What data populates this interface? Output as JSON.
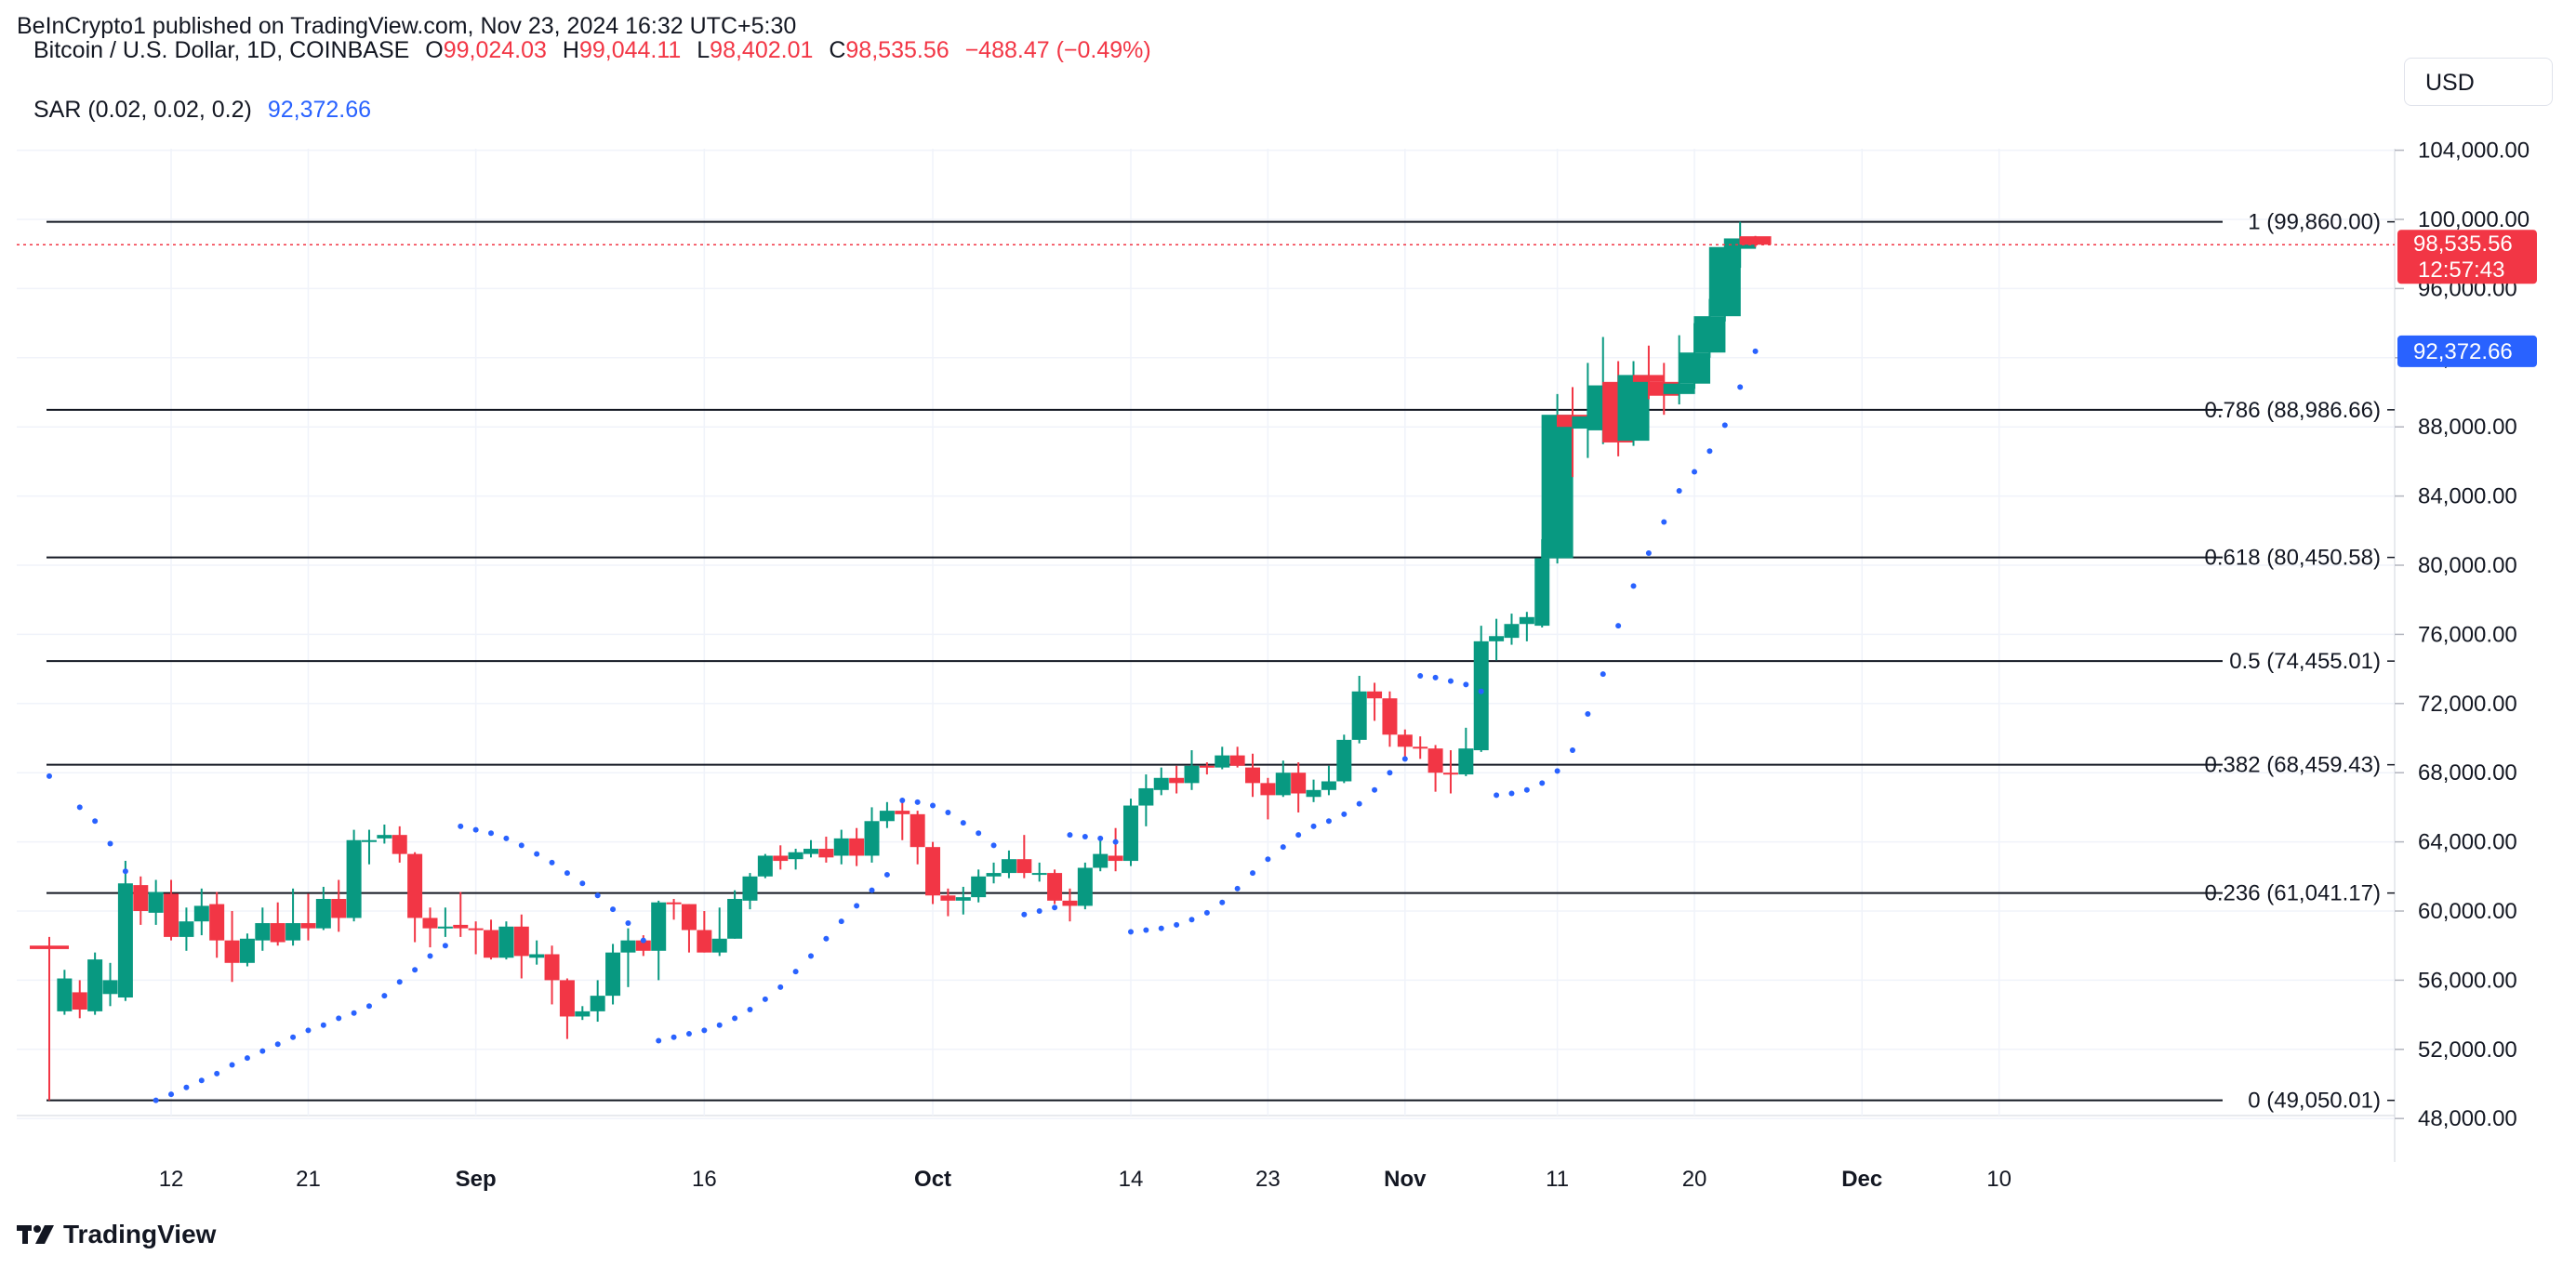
{
  "header": {
    "published": "BeInCrypto1 published on TradingView.com, Nov 23, 2024 16:32 UTC+5:30",
    "symbol": "Bitcoin / U.S. Dollar, 1D, COINBASE",
    "o_label": "O",
    "o_value": "99,024.03",
    "h_label": "H",
    "h_value": "99,044.11",
    "l_label": "L",
    "l_value": "98,402.01",
    "c_label": "C",
    "c_value": "98,535.56",
    "change": "−488.47 (−0.49%)",
    "sar_label": "SAR (0.02, 0.02, 0.2)",
    "sar_value": "92,372.66",
    "currency_button": "USD"
  },
  "footer": {
    "brand": "TradingView"
  },
  "colors": {
    "up": "#089981",
    "down": "#f23645",
    "sar": "#2962ff",
    "fib": "#131722",
    "grid": "#f0f3fa"
  },
  "chart_data": {
    "type": "candlestick",
    "title": "Bitcoin / U.S. Dollar, 1D, COINBASE",
    "ylim": [
      46000,
      106000
    ],
    "y_ticks": [
      48000,
      52000,
      56000,
      60000,
      64000,
      68000,
      72000,
      76000,
      80000,
      84000,
      88000,
      92000,
      96000,
      100000,
      104000
    ],
    "y_tick_labels": [
      "48,000.00",
      "52,000.00",
      "56,000.00",
      "60,000.00",
      "64,000.00",
      "68,000.00",
      "72,000.00",
      "76,000.00",
      "80,000.00",
      "84,000.00",
      "88,000.00",
      "92,000.00",
      "96,000.00",
      "100,000.00",
      "104,000.00"
    ],
    "x_ticks": [
      {
        "label": "12",
        "day": 8,
        "bold": false
      },
      {
        "label": "21",
        "day": 17,
        "bold": false
      },
      {
        "label": "Sep",
        "day": 28,
        "bold": true
      },
      {
        "label": "16",
        "day": 43,
        "bold": false
      },
      {
        "label": "Oct",
        "day": 58,
        "bold": true
      },
      {
        "label": "14",
        "day": 71,
        "bold": false
      },
      {
        "label": "23",
        "day": 80,
        "bold": false
      },
      {
        "label": "Nov",
        "day": 89,
        "bold": true
      },
      {
        "label": "11",
        "day": 99,
        "bold": false
      },
      {
        "label": "20",
        "day": 108,
        "bold": false
      },
      {
        "label": "Dec",
        "day": 119,
        "bold": true
      },
      {
        "label": "10",
        "day": 128,
        "bold": false
      }
    ],
    "fib_levels": [
      {
        "ratio": "1",
        "price": 99860.0,
        "label": "1 (99,860.00)"
      },
      {
        "ratio": "0.786",
        "price": 88986.66,
        "label": "0.786 (88,986.66)"
      },
      {
        "ratio": "0.618",
        "price": 80450.58,
        "label": "0.618 (80,450.58)"
      },
      {
        "ratio": "0.5",
        "price": 74455.01,
        "label": "0.5 (74,455.01)"
      },
      {
        "ratio": "0.382",
        "price": 68459.43,
        "label": "0.382 (68,459.43)"
      },
      {
        "ratio": "0.236",
        "price": 61041.17,
        "label": "0.236 (61,041.17)"
      },
      {
        "ratio": "0",
        "price": 49050.01,
        "label": "0 (49,050.01)"
      }
    ],
    "last_price": {
      "value": 98535.56,
      "label": "98,535.56",
      "countdown": "12:57:43"
    },
    "sar_last": {
      "value": 92372.66,
      "label": "92,372.66"
    },
    "candles": [
      [
        58000,
        57800,
        58500,
        49050
      ],
      [
        54200,
        56100,
        56600,
        54000
      ],
      [
        55300,
        54300,
        56000,
        53800
      ],
      [
        54200,
        57200,
        57600,
        54000
      ],
      [
        55200,
        56000,
        57000,
        54500
      ],
      [
        55000,
        61600,
        62900,
        54800
      ],
      [
        61500,
        60000,
        62000,
        59200
      ],
      [
        59900,
        61100,
        61800,
        59200
      ],
      [
        61000,
        58500,
        61800,
        58300
      ],
      [
        58500,
        59400,
        60200,
        57700
      ],
      [
        59400,
        60300,
        61300,
        58600
      ],
      [
        60400,
        58300,
        61100,
        57300
      ],
      [
        58300,
        57000,
        60000,
        55900
      ],
      [
        57000,
        58400,
        58700,
        56800
      ],
      [
        58300,
        59300,
        60200,
        57700
      ],
      [
        59300,
        58200,
        60500,
        58000
      ],
      [
        58300,
        59300,
        61300,
        58000
      ],
      [
        59300,
        59000,
        61000,
        58300
      ],
      [
        59000,
        60700,
        61400,
        58900
      ],
      [
        60700,
        59600,
        61800,
        58800
      ],
      [
        59600,
        64100,
        64700,
        59400
      ],
      [
        64000,
        64100,
        64700,
        62700
      ],
      [
        64200,
        64400,
        65000,
        63900
      ],
      [
        64400,
        63300,
        64900,
        62800
      ],
      [
        63300,
        59600,
        63400,
        58200
      ],
      [
        59600,
        59000,
        60200,
        57900
      ],
      [
        59000,
        59100,
        60200,
        58500
      ],
      [
        59200,
        59000,
        61100,
        58500
      ],
      [
        59000,
        58900,
        59400,
        57500
      ],
      [
        58900,
        57300,
        59500,
        57200
      ],
      [
        57300,
        59100,
        59400,
        57200
      ],
      [
        59100,
        57400,
        59800,
        56100
      ],
      [
        57300,
        57500,
        58300,
        56900
      ],
      [
        57500,
        56000,
        58000,
        54600
      ],
      [
        56000,
        53900,
        56100,
        52600
      ],
      [
        53900,
        54200,
        54500,
        53700
      ],
      [
        54200,
        55100,
        56000,
        53600
      ],
      [
        55100,
        57600,
        58100,
        54600
      ],
      [
        57600,
        58300,
        59000,
        55600
      ],
      [
        58300,
        57700,
        58600,
        57400
      ],
      [
        57700,
        60500,
        60600,
        56000
      ],
      [
        60500,
        60400,
        60700,
        59500
      ],
      [
        60400,
        58900,
        60400,
        57600
      ],
      [
        58900,
        57600,
        60000,
        57600
      ],
      [
        57600,
        58400,
        60200,
        57400
      ],
      [
        58400,
        60700,
        61200,
        58400
      ],
      [
        60600,
        62000,
        62200,
        60100
      ],
      [
        62000,
        63200,
        63300,
        61900
      ],
      [
        63200,
        62900,
        63800,
        62400
      ],
      [
        63000,
        63400,
        63600,
        62400
      ],
      [
        63300,
        63600,
        64100,
        63100
      ],
      [
        63600,
        63100,
        64300,
        62800
      ],
      [
        63200,
        64200,
        64700,
        62700
      ],
      [
        64200,
        63200,
        64800,
        62600
      ],
      [
        63200,
        65200,
        66000,
        62800
      ],
      [
        65200,
        65800,
        66300,
        64800
      ],
      [
        65800,
        65600,
        66300,
        64100
      ],
      [
        65600,
        63700,
        65800,
        62700
      ],
      [
        63700,
        60900,
        64000,
        60400
      ],
      [
        60900,
        60600,
        61300,
        59700
      ],
      [
        60600,
        60800,
        61400,
        59800
      ],
      [
        60800,
        62000,
        62400,
        60500
      ],
      [
        62000,
        62200,
        62800,
        61600
      ],
      [
        62200,
        63000,
        63500,
        61900
      ],
      [
        63000,
        62200,
        64400,
        61900
      ],
      [
        62200,
        62200,
        62800,
        61700
      ],
      [
        62200,
        60600,
        62400,
        60400
      ],
      [
        60600,
        60300,
        61300,
        59400
      ],
      [
        60300,
        62500,
        62800,
        60100
      ],
      [
        62500,
        63300,
        64200,
        62300
      ],
      [
        63200,
        62900,
        64800,
        62300
      ],
      [
        62900,
        66100,
        66500,
        62600
      ],
      [
        66100,
        67100,
        67900,
        64900
      ],
      [
        67000,
        67700,
        68300,
        66700
      ],
      [
        67700,
        67400,
        68400,
        66800
      ],
      [
        67400,
        68400,
        69300,
        67000
      ],
      [
        68400,
        68300,
        68600,
        67900
      ],
      [
        68300,
        69000,
        69500,
        68200
      ],
      [
        69000,
        68400,
        69500,
        68300
      ],
      [
        68300,
        67400,
        69100,
        66600
      ],
      [
        67400,
        66700,
        67700,
        65300
      ],
      [
        66700,
        68000,
        68700,
        66600
      ],
      [
        68000,
        66800,
        68600,
        65700
      ],
      [
        66600,
        67000,
        67600,
        66300
      ],
      [
        67000,
        67500,
        68400,
        66700
      ],
      [
        67500,
        69900,
        70200,
        67400
      ],
      [
        69900,
        72700,
        73600,
        69700
      ],
      [
        72700,
        72300,
        73200,
        71000
      ],
      [
        72300,
        70200,
        72700,
        69500
      ],
      [
        70200,
        69500,
        70500,
        68800
      ],
      [
        69500,
        69400,
        70100,
        68800
      ],
      [
        69400,
        68000,
        69600,
        66900
      ],
      [
        68000,
        67900,
        69300,
        66800
      ],
      [
        67900,
        69400,
        70600,
        67800
      ],
      [
        69300,
        75600,
        76500,
        69200
      ],
      [
        75600,
        75900,
        76900,
        74500
      ],
      [
        75800,
        76600,
        77200,
        75400
      ],
      [
        76600,
        77000,
        77300,
        75600
      ],
      [
        76500,
        80400,
        81500,
        76400
      ],
      [
        80400,
        88700,
        89900,
        80100
      ],
      [
        88700,
        88000,
        90300,
        85100
      ],
      [
        87900,
        88600,
        91700,
        86200
      ],
      [
        87800,
        90400,
        93200,
        87000
      ],
      [
        90600,
        87100,
        91800,
        86300
      ],
      [
        87200,
        91000,
        91800,
        86900
      ],
      [
        91000,
        90600,
        92700,
        89600
      ],
      [
        90600,
        89800,
        91700,
        88700
      ],
      [
        89900,
        90500,
        93300,
        89300
      ],
      [
        90500,
        92300,
        94000,
        90200
      ],
      [
        92300,
        94400,
        95400,
        92000
      ],
      [
        94400,
        98400,
        98900,
        94100
      ],
      [
        98300,
        98900,
        99860,
        97200
      ],
      [
        99024.03,
        98535.56,
        99044.11,
        98402.01
      ]
    ],
    "sar": [
      [
        0,
        67800
      ],
      [
        2,
        66000
      ],
      [
        3,
        65200
      ],
      [
        4,
        63900
      ],
      [
        5,
        62300
      ],
      [
        7,
        49050
      ],
      [
        8,
        49400
      ],
      [
        9,
        49800
      ],
      [
        10,
        50200
      ],
      [
        11,
        50600
      ],
      [
        12,
        51100
      ],
      [
        13,
        51500
      ],
      [
        14,
        51900
      ],
      [
        15,
        52300
      ],
      [
        16,
        52700
      ],
      [
        17,
        53100
      ],
      [
        18,
        53400
      ],
      [
        19,
        53800
      ],
      [
        20,
        54100
      ],
      [
        21,
        54500
      ],
      [
        22,
        55100
      ],
      [
        23,
        55900
      ],
      [
        24,
        56600
      ],
      [
        25,
        57400
      ],
      [
        26,
        58000
      ],
      [
        27,
        64900
      ],
      [
        28,
        64700
      ],
      [
        29,
        64500
      ],
      [
        30,
        64200
      ],
      [
        31,
        63800
      ],
      [
        32,
        63300
      ],
      [
        33,
        62800
      ],
      [
        34,
        62200
      ],
      [
        35,
        61600
      ],
      [
        36,
        60900
      ],
      [
        37,
        60100
      ],
      [
        38,
        59300
      ],
      [
        39,
        58300
      ],
      [
        40,
        52500
      ],
      [
        41,
        52700
      ],
      [
        42,
        52900
      ],
      [
        43,
        53100
      ],
      [
        44,
        53400
      ],
      [
        45,
        53800
      ],
      [
        46,
        54300
      ],
      [
        47,
        54900
      ],
      [
        48,
        55600
      ],
      [
        49,
        56500
      ],
      [
        50,
        57400
      ],
      [
        51,
        58400
      ],
      [
        52,
        59400
      ],
      [
        53,
        60300
      ],
      [
        54,
        61200
      ],
      [
        55,
        62100
      ],
      [
        56,
        66400
      ],
      [
        57,
        66300
      ],
      [
        58,
        66100
      ],
      [
        59,
        65700
      ],
      [
        60,
        65100
      ],
      [
        61,
        64500
      ],
      [
        62,
        63800
      ],
      [
        64,
        59800
      ],
      [
        65,
        60000
      ],
      [
        66,
        60200
      ],
      [
        67,
        64400
      ],
      [
        68,
        64300
      ],
      [
        69,
        64200
      ],
      [
        70,
        64000
      ],
      [
        71,
        58800
      ],
      [
        72,
        58900
      ],
      [
        73,
        59000
      ],
      [
        74,
        59200
      ],
      [
        75,
        59500
      ],
      [
        76,
        59900
      ],
      [
        77,
        60500
      ],
      [
        78,
        61300
      ],
      [
        79,
        62200
      ],
      [
        80,
        63000
      ],
      [
        81,
        63700
      ],
      [
        82,
        64400
      ],
      [
        83,
        64900
      ],
      [
        84,
        65200
      ],
      [
        85,
        65600
      ],
      [
        86,
        66200
      ],
      [
        87,
        67000
      ],
      [
        88,
        68000
      ],
      [
        89,
        68800
      ],
      [
        90,
        73600
      ],
      [
        91,
        73500
      ],
      [
        92,
        73300
      ],
      [
        93,
        73100
      ],
      [
        94,
        72700
      ],
      [
        95,
        66700
      ],
      [
        96,
        66800
      ],
      [
        97,
        67000
      ],
      [
        98,
        67400
      ],
      [
        99,
        68100
      ],
      [
        100,
        69300
      ],
      [
        101,
        71400
      ],
      [
        102,
        73700
      ],
      [
        103,
        76500
      ],
      [
        104,
        78800
      ],
      [
        105,
        80700
      ],
      [
        106,
        82500
      ],
      [
        107,
        84300
      ],
      [
        108,
        85400
      ],
      [
        109,
        86600
      ],
      [
        110,
        88100
      ],
      [
        111,
        90300
      ],
      [
        112,
        92372.66
      ]
    ]
  }
}
